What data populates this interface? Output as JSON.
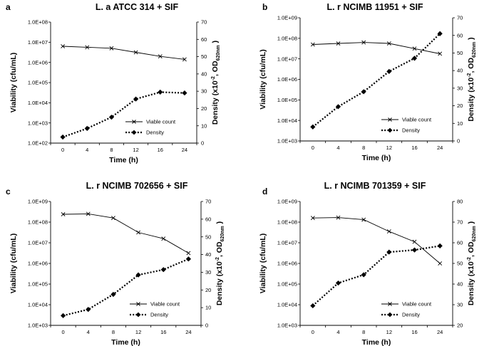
{
  "figure": {
    "x_label": "Time (h)",
    "y_left_label": "Viability (cfu/mL)",
    "y_right_label_prefix": "Density (x10",
    "y_right_label_exp": "-2",
    "y_right_label_mid": ", OD",
    "y_right_label_sub": "620nm",
    "y_right_label_suffix": " )",
    "legend_viable": "Viable count",
    "legend_density": "Density",
    "colors": {
      "line": "#000000",
      "background": "#ffffff"
    }
  },
  "chart_data": [
    {
      "type": "line",
      "panel": "a",
      "title": "L. a ATCC 314 + SIF",
      "categories": [
        "0",
        "4",
        "8",
        "12",
        "16",
        "24"
      ],
      "ylim_left_log10": [
        2,
        8
      ],
      "y_left_ticks": [
        "1.0E+02",
        "1.0E+03",
        "1.0E+04",
        "1.0E+05",
        "1.0E+06",
        "1.0E+07",
        "1.0E+08"
      ],
      "ylim_right": [
        0,
        70
      ],
      "y_right_ticks": [
        "0",
        "10",
        "20",
        "30",
        "40",
        "50",
        "60",
        "70"
      ],
      "series": [
        {
          "name": "Viable count",
          "axis": "left",
          "scale": "log10",
          "values": [
            6.8,
            6.75,
            6.7,
            6.5,
            6.3,
            6.15
          ]
        },
        {
          "name": "Density",
          "axis": "right",
          "values": [
            3.5,
            8.5,
            15,
            25.5,
            29.5,
            29
          ]
        }
      ]
    },
    {
      "type": "line",
      "panel": "b",
      "title": "L. r NCIMB 11951 + SIF",
      "categories": [
        "0",
        "4",
        "8",
        "12",
        "16",
        "24"
      ],
      "ylim_left_log10": [
        3,
        9
      ],
      "y_left_ticks": [
        "1.0E+03",
        "1.0E+04",
        "1.0E+05",
        "1.0E+06",
        "1.0E+07",
        "1.0E+08",
        "1.0E+09"
      ],
      "ylim_right": [
        0,
        70
      ],
      "y_right_ticks": [
        "0",
        "10",
        "20",
        "30",
        "40",
        "50",
        "60",
        "70"
      ],
      "series": [
        {
          "name": "Viable count",
          "axis": "left",
          "scale": "log10",
          "values": [
            7.7,
            7.75,
            7.8,
            7.75,
            7.5,
            7.25
          ]
        },
        {
          "name": "Density",
          "axis": "right",
          "values": [
            8,
            19.5,
            28,
            39.5,
            47,
            61
          ]
        }
      ]
    },
    {
      "type": "line",
      "panel": "c",
      "title": "L. r NCIMB 702656 + SIF",
      "categories": [
        "0",
        "4",
        "8",
        "12",
        "16",
        "24"
      ],
      "ylim_left_log10": [
        3,
        9
      ],
      "y_left_ticks": [
        "1.0E+03",
        "1.0E+04",
        "1.0E+05",
        "1.0E+06",
        "1.0E+07",
        "1.0E+08",
        "1.0E+09"
      ],
      "ylim_right": [
        0,
        70
      ],
      "y_right_ticks": [
        "0",
        "10",
        "20",
        "30",
        "40",
        "50",
        "60",
        "70"
      ],
      "series": [
        {
          "name": "Viable count",
          "axis": "left",
          "scale": "log10",
          "values": [
            8.38,
            8.4,
            8.2,
            7.5,
            7.2,
            6.5
          ]
        },
        {
          "name": "Density",
          "axis": "right",
          "values": [
            5.5,
            9,
            17.5,
            28.5,
            31.5,
            37.5
          ]
        }
      ]
    },
    {
      "type": "line",
      "panel": "d",
      "title": "L. r NCIMB 701359  + SIF",
      "categories": [
        "0",
        "4",
        "8",
        "12",
        "16",
        "24"
      ],
      "ylim_left_log10": [
        3,
        9
      ],
      "y_left_ticks": [
        "1.0E+03",
        "1.0E+04",
        "1.0E+05",
        "1.0E+06",
        "1.0E+07",
        "1.0E+08",
        "1.0E+09"
      ],
      "ylim_right": [
        20,
        80
      ],
      "y_right_ticks": [
        "20",
        "30",
        "40",
        "50",
        "60",
        "70",
        "80"
      ],
      "series": [
        {
          "name": "Viable count",
          "axis": "left",
          "scale": "log10",
          "values": [
            8.2,
            8.22,
            8.12,
            7.55,
            7.05,
            6.0
          ]
        },
        {
          "name": "Density",
          "axis": "right",
          "values": [
            29.5,
            40.5,
            44.5,
            55.5,
            56.5,
            58.5
          ]
        }
      ]
    }
  ]
}
